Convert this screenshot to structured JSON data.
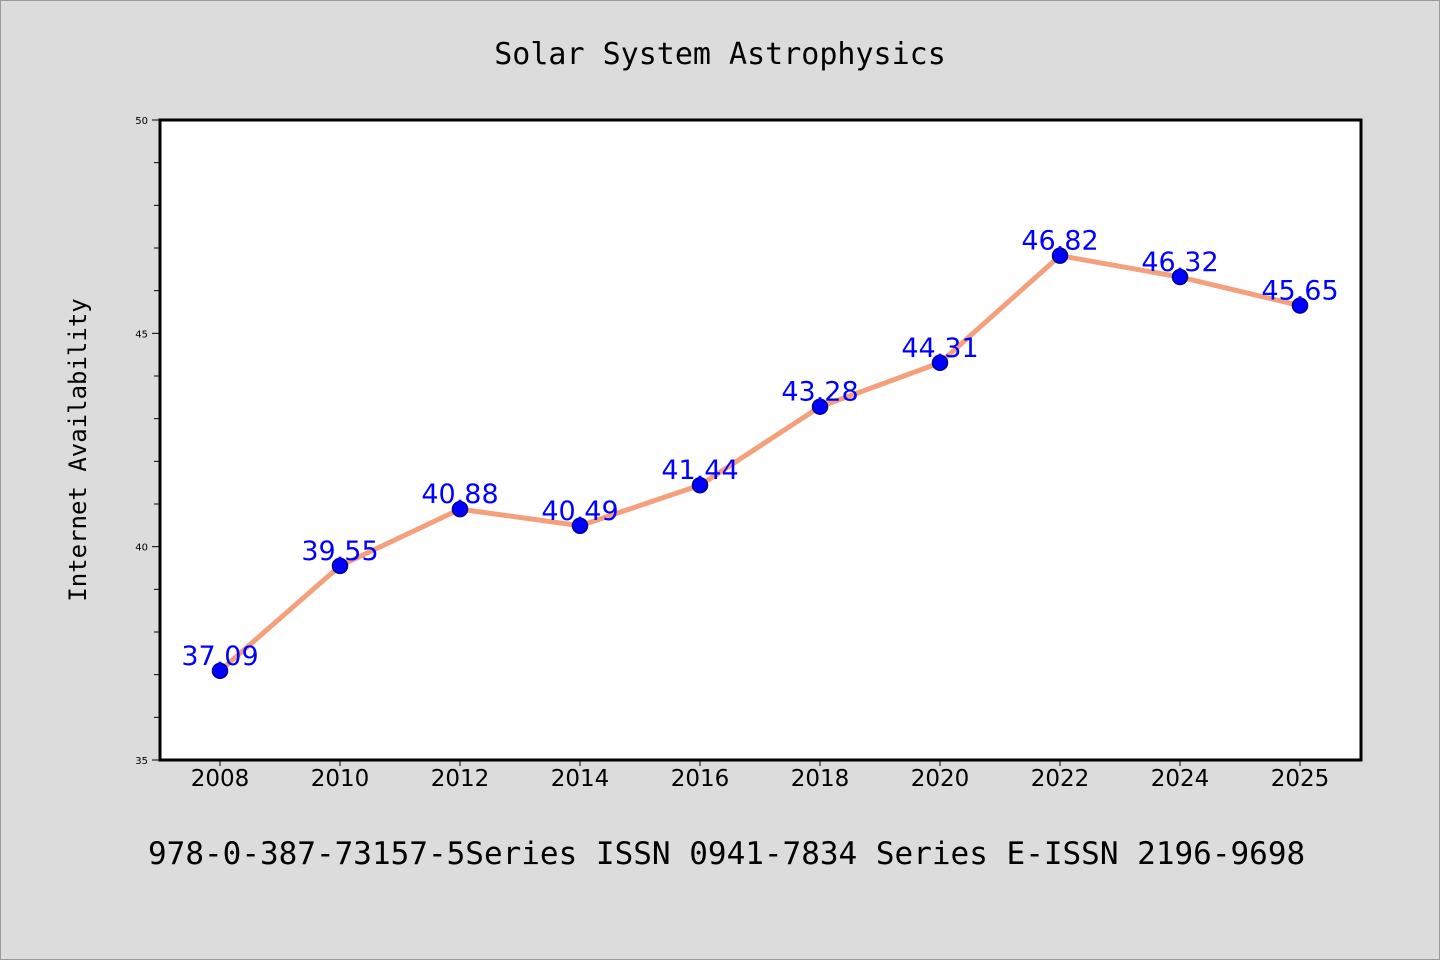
{
  "footer_text": "978-0-387-73157-5Series ISSN 0941-7834 Series E-ISSN 2196-9698",
  "chart_data": {
    "type": "line",
    "title": "Solar System Astrophysics",
    "xlabel": "",
    "ylabel": "Internet Availability",
    "categories": [
      "2008",
      "2010",
      "2012",
      "2014",
      "2016",
      "2018",
      "2020",
      "2022",
      "2024",
      "2025"
    ],
    "series": [
      {
        "values": [
          37.09,
          39.55,
          40.88,
          40.49,
          41.44,
          43.28,
          44.31,
          46.82,
          46.32,
          45.65
        ]
      }
    ],
    "data_labels": [
      "37.09",
      "39.55",
      "40.88",
      "40.49",
      "41.44",
      "43.28",
      "44.31",
      "46.82",
      "46.32",
      "45.65"
    ],
    "ylim": [
      35,
      50
    ],
    "yticks": [
      "35",
      "40",
      "45",
      "50"
    ],
    "grid": false,
    "colors": {
      "line": "#f4a07c",
      "marker": "#0000ff",
      "marker_edge": "#00008b",
      "label": "#0000ff"
    }
  }
}
